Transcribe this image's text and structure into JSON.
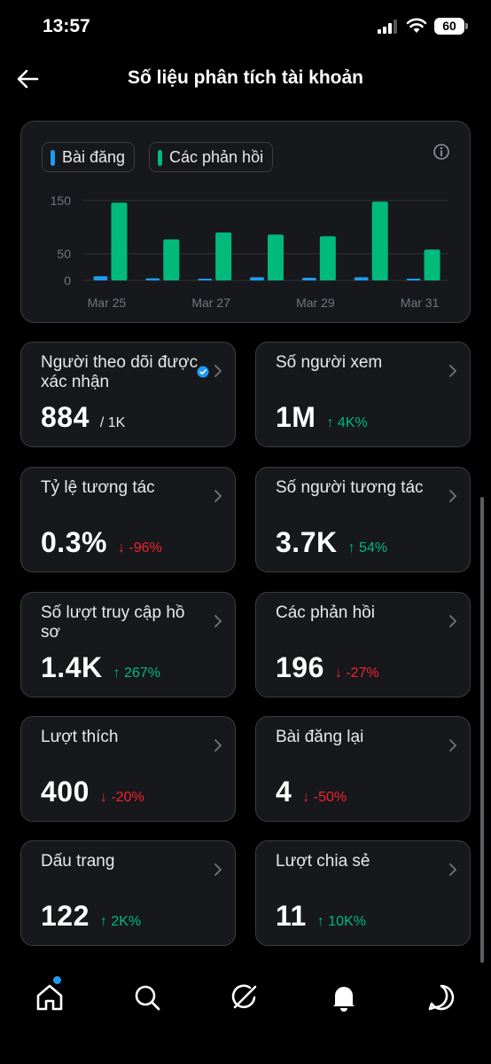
{
  "status_bar": {
    "time": "13:57",
    "battery": "60"
  },
  "header": {
    "title": "Số liệu phân tích tài khoản"
  },
  "legend": {
    "posts": "Bài đăng",
    "replies": "Các phản hồi"
  },
  "colors": {
    "posts": "#1d9bf0",
    "replies": "#00ba7c",
    "up": "#00ba7c",
    "down": "#f4212e"
  },
  "chart_data": {
    "type": "bar",
    "categories": [
      "Mar 25",
      "Mar 26",
      "Mar 27",
      "Mar 28",
      "Mar 29",
      "Mar 30",
      "Mar 31"
    ],
    "series": [
      {
        "name": "Bài đăng",
        "values": [
          8,
          4,
          3,
          6,
          5,
          6,
          2
        ]
      },
      {
        "name": "Các phản hồi",
        "values": [
          146,
          77,
          90,
          86,
          83,
          148,
          58
        ]
      }
    ],
    "x_tick_labels": [
      "Mar 25",
      "Mar 27",
      "Mar 29",
      "Mar 31"
    ],
    "y_ticks": [
      "150",
      "50",
      "0"
    ],
    "ylim": [
      0,
      150
    ],
    "grid": true
  },
  "stats": [
    {
      "label": "Người theo dõi được xác nhận",
      "value": "884",
      "sub": "/ 1K",
      "verified": true
    },
    {
      "label": "Số người xem",
      "value": "1M",
      "change": "↑ 4K%",
      "dir": "up"
    },
    {
      "label": "Tỷ lệ tương tác",
      "value": "0.3%",
      "change": "↓ -96%",
      "dir": "down"
    },
    {
      "label": "Số người tương tác",
      "value": "3.7K",
      "change": "↑ 54%",
      "dir": "up"
    },
    {
      "label": "Số lượt truy cập hồ sơ",
      "value": "1.4K",
      "change": "↑ 267%",
      "dir": "up"
    },
    {
      "label": "Các phản hồi",
      "value": "196",
      "change": "↓ -27%",
      "dir": "down"
    },
    {
      "label": "Lượt thích",
      "value": "400",
      "change": "↓ -20%",
      "dir": "down"
    },
    {
      "label": "Bài đăng lại",
      "value": "4",
      "change": "↓ -50%",
      "dir": "down"
    },
    {
      "label": "Dấu trang",
      "value": "122",
      "change": "↑ 2K%",
      "dir": "up"
    },
    {
      "label": "Lượt chia sẻ",
      "value": "11",
      "change": "↑ 10K%",
      "dir": "up"
    }
  ],
  "nav_icons": [
    "home-icon",
    "search-icon",
    "grok-icon",
    "notifications-icon",
    "messages-icon"
  ]
}
